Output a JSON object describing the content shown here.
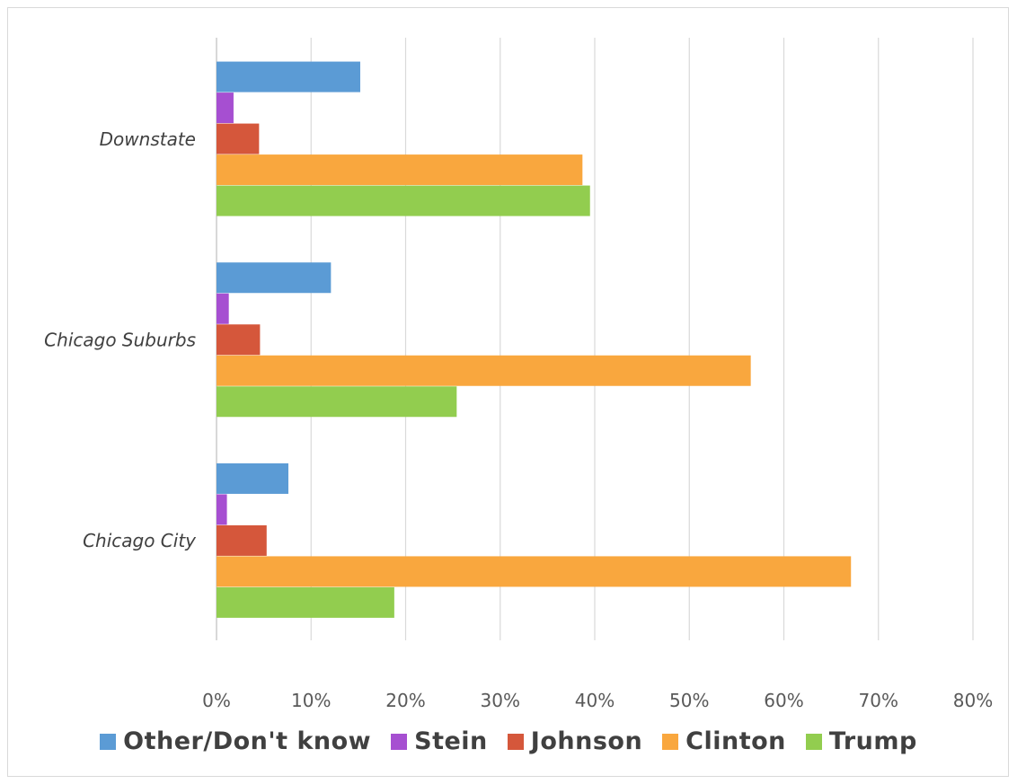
{
  "chart_data": {
    "type": "bar",
    "orientation": "horizontal",
    "categories": [
      "Downstate",
      "Chicago Suburbs",
      "Chicago City"
    ],
    "series": [
      {
        "name": "Other/Don't know",
        "color": "#5B9BD5",
        "values": [
          15.2,
          12.1,
          7.6
        ]
      },
      {
        "name": "Stein",
        "color": "#A64FD1",
        "values": [
          1.8,
          1.3,
          1.1
        ]
      },
      {
        "name": "Johnson",
        "color": "#D5573B",
        "values": [
          4.5,
          4.6,
          5.3
        ]
      },
      {
        "name": "Clinton",
        "color": "#F9A73E",
        "values": [
          38.7,
          56.5,
          67.1
        ]
      },
      {
        "name": "Trump",
        "color": "#92CD4F",
        "values": [
          39.5,
          25.4,
          18.8
        ]
      }
    ],
    "xlim": [
      0,
      80
    ],
    "xticks": [
      0,
      10,
      20,
      30,
      40,
      50,
      60,
      70,
      80
    ],
    "tick_labels": [
      "0%",
      "10%",
      "20%",
      "30%",
      "40%",
      "50%",
      "60%",
      "70%",
      "80%"
    ],
    "grid": true,
    "legend_position": "bottom",
    "title": "",
    "xlabel": "",
    "ylabel": ""
  }
}
